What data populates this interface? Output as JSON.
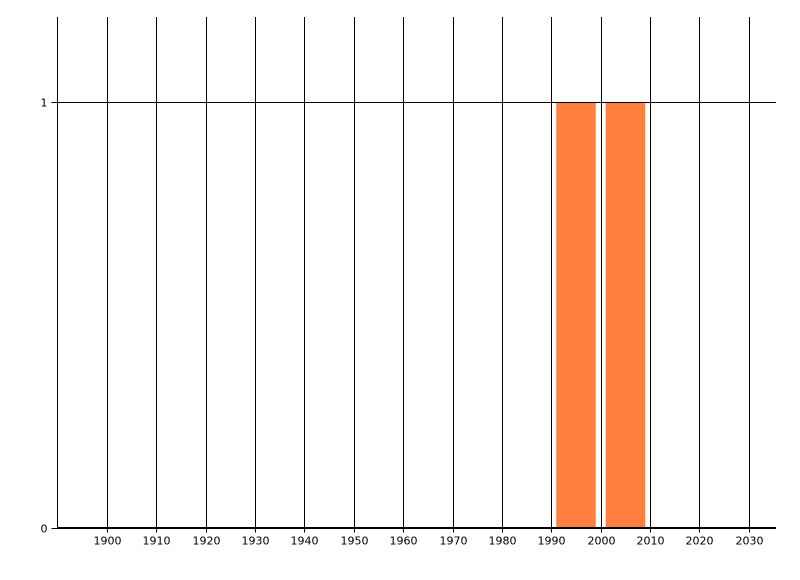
{
  "chart_data": {
    "type": "bar",
    "title": "",
    "xlabel": "",
    "ylabel": "",
    "xlim": [
      1890,
      2035.5
    ],
    "ylim": [
      0,
      1.2
    ],
    "x_ticks": [
      "1900",
      "1910",
      "1920",
      "1930",
      "1940",
      "1950",
      "1960",
      "1970",
      "1980",
      "1990",
      "2000",
      "2010",
      "2020",
      "2030"
    ],
    "y_ticks": [
      "0",
      "1"
    ],
    "grid": "on",
    "bars": [
      {
        "x_start": 1991,
        "x_end": 1999,
        "value": 1
      },
      {
        "x_start": 2001,
        "x_end": 2009,
        "value": 1
      }
    ],
    "colors": {
      "bar": "#FF7F3F",
      "grid": "#000000",
      "axis": "#000000"
    }
  }
}
